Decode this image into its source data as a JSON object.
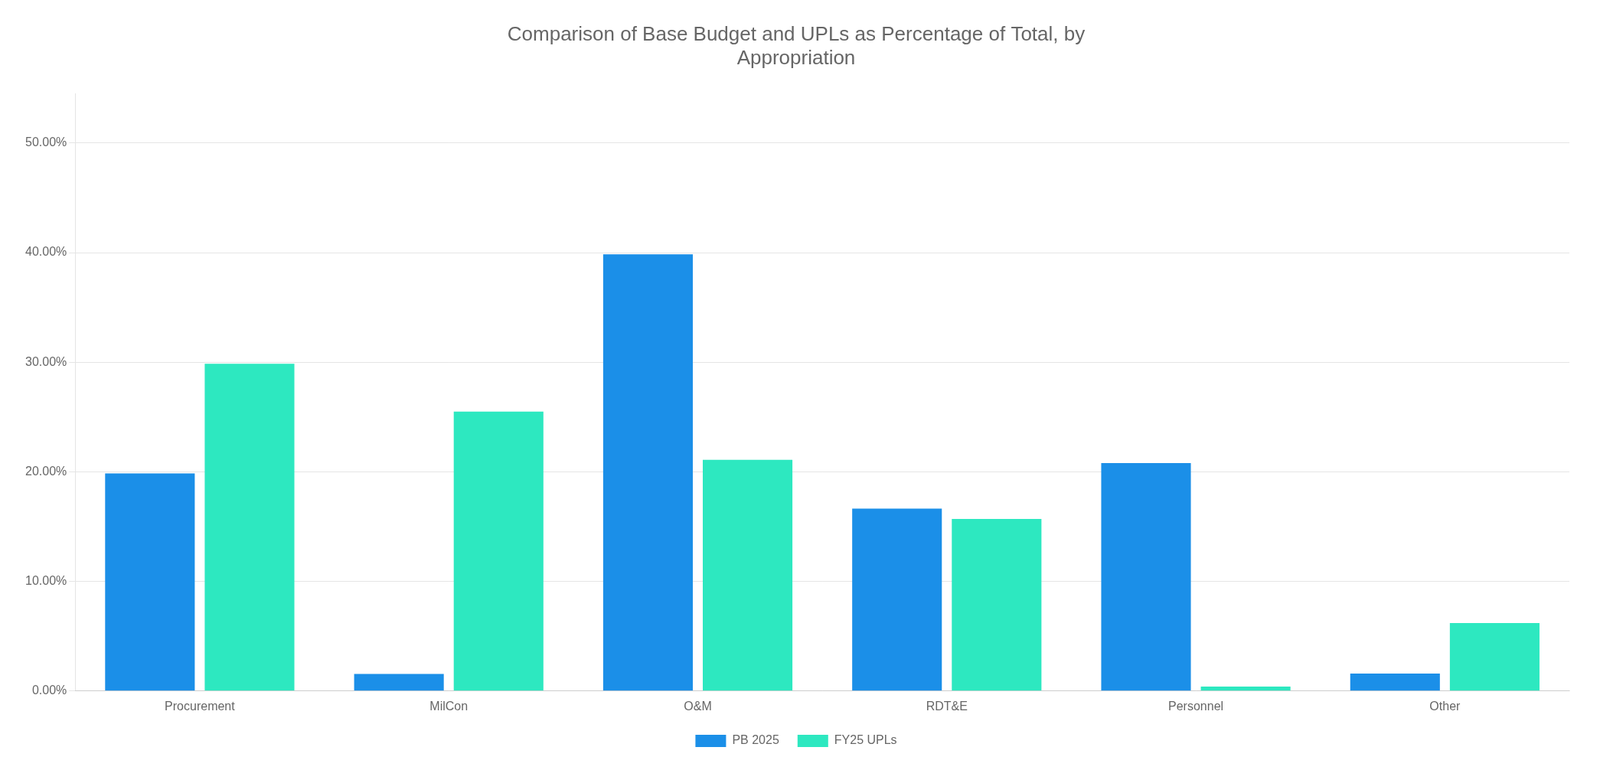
{
  "chart_data": {
    "type": "bar",
    "title": "Comparison of Base Budget and UPLs as Percentage of Total, by\nAppropriation",
    "categories": [
      "Procurement",
      "MilCon",
      "O&M",
      "RDT&E",
      "Personnel",
      "Other"
    ],
    "series": [
      {
        "name": "PB 2025",
        "color": "#1B8FE8",
        "values": [
          0.1985,
          0.0155,
          0.3985,
          0.1665,
          0.208,
          0.016
        ]
      },
      {
        "name": "FY25 UPLs",
        "color": "#2DE8C0",
        "values": [
          0.2985,
          0.255,
          0.211,
          0.157,
          0.004,
          0.062
        ]
      }
    ],
    "ylim": [
      0,
      0.545
    ],
    "yticks": [
      {
        "value": 0.0,
        "label": "0.00%"
      },
      {
        "value": 0.1,
        "label": "10.00%"
      },
      {
        "value": 0.2,
        "label": "20.00%"
      },
      {
        "value": 0.3,
        "label": "30.00%"
      },
      {
        "value": 0.4,
        "label": "40.00%"
      },
      {
        "value": 0.5,
        "label": "50.00%"
      }
    ],
    "grid": true,
    "legend": "bottom"
  }
}
